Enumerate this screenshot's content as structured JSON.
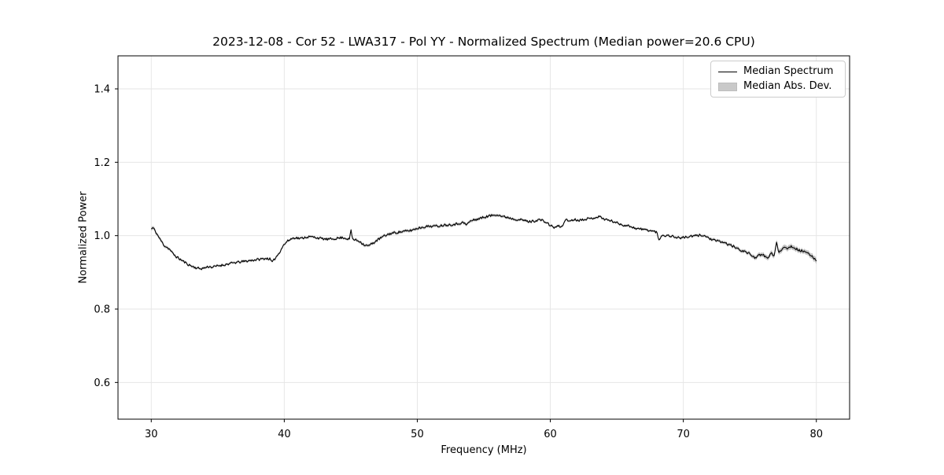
{
  "chart_data": {
    "type": "line",
    "title": "2023-12-08 - Cor 52 - LWA317 - Pol YY - Normalized Spectrum (Median power=20.6 CPU)",
    "xlabel": "Frequency (MHz)",
    "ylabel": "Normalized Power",
    "xlim": [
      27.5,
      82.5
    ],
    "ylim": [
      0.5,
      1.49
    ],
    "xticks": [
      30,
      40,
      50,
      60,
      70,
      80
    ],
    "xtick_labels": [
      "30",
      "40",
      "50",
      "60",
      "70",
      "80"
    ],
    "yticks": [
      0.6,
      0.8,
      1.0,
      1.2,
      1.4
    ],
    "ytick_labels": [
      "0.6",
      "0.8",
      "1.0",
      "1.2",
      "1.4"
    ],
    "grid": true,
    "legend_position": "upper right",
    "legend": [
      "Median Spectrum",
      "Median Abs. Dev."
    ],
    "colors": {
      "line": "#000000",
      "band": "#c4c4c4",
      "grid": "#e6e6e6",
      "frame": "#000000",
      "text": "#000000"
    },
    "series": [
      {
        "name": "Median Spectrum",
        "x": [
          30.0,
          30.15,
          30.3,
          30.5,
          30.7,
          31.0,
          31.2,
          31.4,
          31.6,
          31.9,
          32.2,
          32.5,
          32.8,
          33.1,
          33.4,
          33.7,
          34.0,
          34.3,
          34.6,
          35.0,
          35.4,
          35.8,
          36.2,
          36.6,
          37.0,
          37.4,
          37.8,
          38.2,
          38.6,
          38.9,
          39.1,
          39.3,
          39.6,
          39.9,
          40.2,
          40.5,
          40.8,
          41.2,
          41.6,
          42.0,
          42.4,
          42.8,
          43.2,
          43.6,
          44.0,
          44.4,
          44.8,
          44.9,
          45.0,
          45.15,
          45.4,
          45.7,
          46.0,
          46.3,
          46.6,
          47.0,
          47.4,
          47.9,
          48.3,
          48.7,
          49.1,
          49.5,
          50.0,
          50.5,
          51.0,
          51.5,
          52.0,
          52.5,
          53.0,
          53.4,
          53.7,
          54.0,
          54.4,
          54.8,
          55.2,
          55.6,
          56.0,
          56.4,
          56.8,
          57.2,
          57.6,
          58.0,
          58.4,
          58.8,
          59.2,
          59.6,
          60.0,
          60.3,
          60.6,
          60.9,
          61.1,
          61.4,
          61.8,
          62.2,
          62.6,
          63.0,
          63.4,
          63.7,
          64.0,
          64.4,
          64.8,
          65.2,
          65.6,
          66.0,
          66.4,
          66.8,
          67.2,
          67.6,
          68.0,
          68.15,
          68.4,
          68.7,
          69.0,
          69.4,
          69.8,
          70.2,
          70.6,
          71.0,
          71.4,
          71.8,
          72.2,
          72.6,
          73.0,
          73.4,
          73.8,
          74.2,
          74.6,
          75.0,
          75.4,
          75.7,
          76.0,
          76.3,
          76.6,
          76.85,
          77.0,
          77.15,
          77.4,
          77.65,
          77.85,
          78.1,
          78.4,
          78.7,
          79.0,
          79.3,
          79.6,
          79.8,
          80.0
        ],
        "y": [
          1.018,
          1.022,
          1.012,
          1.0,
          0.988,
          0.972,
          0.968,
          0.962,
          0.952,
          0.942,
          0.935,
          0.928,
          0.921,
          0.916,
          0.912,
          0.91,
          0.912,
          0.916,
          0.914,
          0.918,
          0.92,
          0.923,
          0.926,
          0.928,
          0.93,
          0.932,
          0.934,
          0.936,
          0.938,
          0.937,
          0.927,
          0.938,
          0.952,
          0.972,
          0.984,
          0.991,
          0.995,
          0.992,
          0.996,
          0.997,
          0.995,
          0.992,
          0.99,
          0.991,
          0.993,
          0.995,
          0.991,
          0.99,
          1.016,
          0.99,
          0.988,
          0.984,
          0.975,
          0.972,
          0.978,
          0.988,
          0.997,
          1.005,
          1.008,
          1.01,
          1.012,
          1.014,
          1.02,
          1.024,
          1.026,
          1.026,
          1.029,
          1.03,
          1.032,
          1.036,
          1.03,
          1.04,
          1.044,
          1.048,
          1.052,
          1.055,
          1.058,
          1.052,
          1.05,
          1.046,
          1.044,
          1.042,
          1.038,
          1.04,
          1.044,
          1.038,
          1.028,
          1.022,
          1.026,
          1.024,
          1.044,
          1.04,
          1.044,
          1.042,
          1.046,
          1.046,
          1.05,
          1.052,
          1.046,
          1.042,
          1.038,
          1.032,
          1.028,
          1.026,
          1.02,
          1.018,
          1.016,
          1.013,
          1.01,
          0.988,
          1.002,
          1.0,
          1.0,
          0.996,
          0.994,
          0.996,
          0.998,
          1.0,
          1.002,
          0.996,
          0.988,
          0.985,
          0.982,
          0.976,
          0.97,
          0.962,
          0.957,
          0.95,
          0.94,
          0.946,
          0.948,
          0.938,
          0.952,
          0.945,
          0.983,
          0.956,
          0.962,
          0.972,
          0.964,
          0.972,
          0.966,
          0.96,
          0.958,
          0.952,
          0.946,
          0.94,
          0.932
        ]
      }
    ],
    "band": {
      "name": "Median Abs. Dev.",
      "x": [
        30,
        31,
        33,
        40,
        45,
        46,
        50,
        55,
        60,
        65,
        70,
        73,
        75,
        76,
        77,
        78,
        79,
        80
      ],
      "half_width": [
        0.005,
        0.004,
        0.003,
        0.003,
        0.003,
        0.004,
        0.004,
        0.004,
        0.003,
        0.003,
        0.003,
        0.004,
        0.005,
        0.006,
        0.007,
        0.007,
        0.006,
        0.008
      ]
    },
    "render": {
      "noise_amplitude": 0.0032,
      "samples": 820,
      "seed": 11
    }
  }
}
